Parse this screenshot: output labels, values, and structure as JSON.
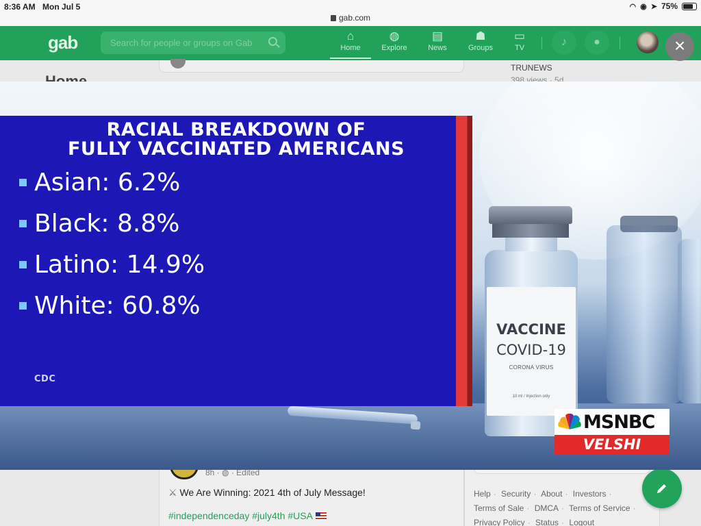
{
  "status_bar": {
    "time": "8:36 AM",
    "date": "Mon Jul 5",
    "url": "gab.com",
    "battery": "75%",
    "battery_level": 0.75
  },
  "header": {
    "logo": "gab",
    "search_placeholder": "Search for people or groups on Gab",
    "nav": [
      {
        "label": "Home",
        "icon": "home-icon"
      },
      {
        "label": "Explore",
        "icon": "globe-icon"
      },
      {
        "label": "News",
        "icon": "newspaper-icon"
      },
      {
        "label": "Groups",
        "icon": "groups-icon"
      },
      {
        "label": "TV",
        "icon": "tv-icon"
      }
    ],
    "active_nav": "Home"
  },
  "background_page": {
    "home_title": "Home",
    "side_item_title": "TRUNEWS",
    "side_item_meta": "398 views · 5d",
    "post_meta": "8h · ",
    "post_edited": "Edited",
    "post_title": "We Are Winning: 2021 4th of July Message!",
    "post_tags": "#independenceday #july4th #USA",
    "footer_links": [
      "Help",
      "Security",
      "About",
      "Investors",
      "Terms of Sale",
      "DMCA",
      "Terms of Service",
      "Privacy Policy",
      "Status",
      "Logout"
    ]
  },
  "media": {
    "heading_line1": "RACIAL BREAKDOWN OF",
    "heading_line2": "FULLY VACCINATED AMERICANS",
    "stats": [
      {
        "label": "Asian:",
        "value": "6.2%"
      },
      {
        "label": "Black:",
        "value": "8.8%"
      },
      {
        "label": "Latino:",
        "value": "14.9%"
      },
      {
        "label": "White:",
        "value": "60.8%"
      }
    ],
    "source": "CDC",
    "vial_line1": "VACCINE",
    "vial_line2": "COVID-19",
    "vial_line3": "CORONA VIRUS",
    "vial_line4": "10 ml / Injection only",
    "network": "MSNBC",
    "show": "VELSHI",
    "colors": {
      "panel": "#1d17b6",
      "accent": "#e23a3a",
      "bullet": "#7fc8ff"
    }
  },
  "close_label": "×"
}
